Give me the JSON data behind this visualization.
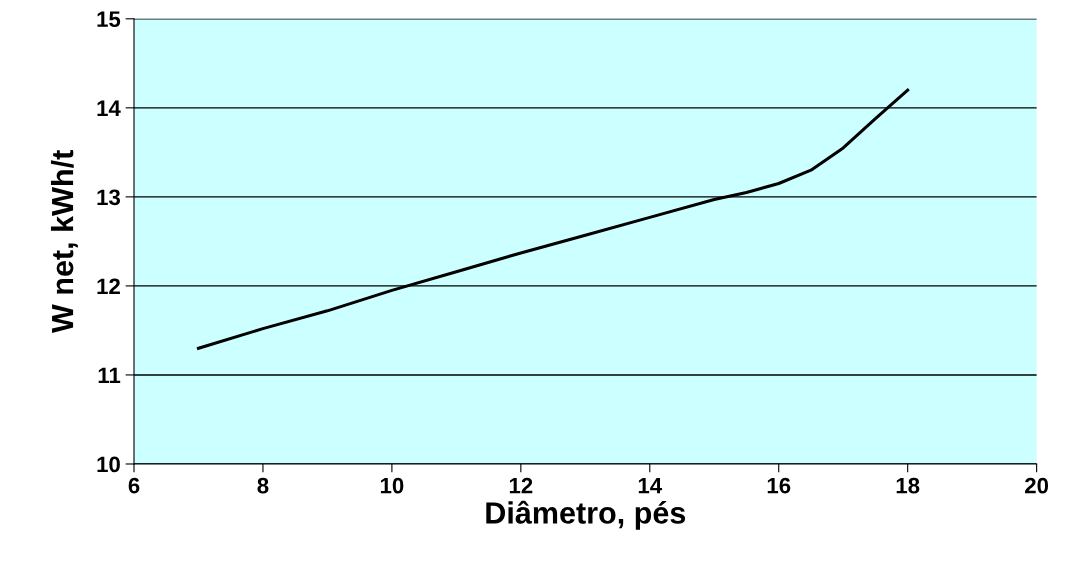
{
  "chart_data": {
    "type": "line",
    "xlabel": "Diâmetro, pés",
    "ylabel": "W net, kWh/t",
    "series": [
      {
        "color": "#000000",
        "x": [
          7,
          8,
          9,
          10,
          11,
          12,
          13,
          14,
          15,
          15.5,
          16,
          16.5,
          17,
          17.5,
          18
        ],
        "values": [
          11.3,
          11.52,
          11.72,
          11.95,
          12.16,
          12.37,
          12.57,
          12.77,
          12.97,
          13.05,
          13.15,
          13.3,
          13.55,
          13.88,
          14.2
        ]
      }
    ],
    "xlim": [
      6,
      20
    ],
    "xticks": [
      6,
      8,
      10,
      12,
      14,
      16,
      18,
      20
    ],
    "ylim": [
      10,
      15
    ],
    "yticks": [
      10,
      11,
      12,
      13,
      14,
      15
    ],
    "grid": "y",
    "legend": false,
    "marker": "none",
    "line_style": "solid"
  }
}
